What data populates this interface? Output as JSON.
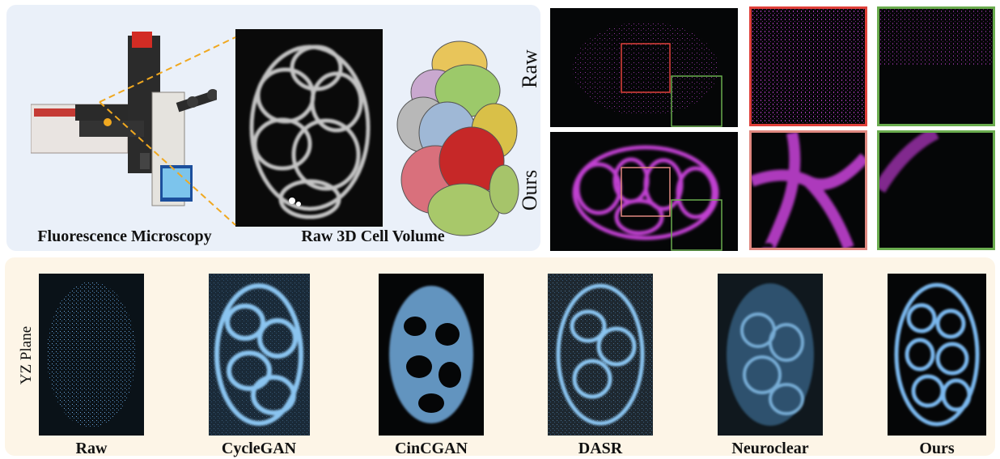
{
  "top_left": {
    "microscope_caption": "Fluorescence Microscopy",
    "volume_caption": "Raw 3D Cell Volume"
  },
  "top_right": {
    "row_labels": [
      "Raw",
      "Ours"
    ],
    "colors": {
      "red_box": "#e0403a",
      "green_box": "#6aac4e",
      "pink_box": "#e08880"
    }
  },
  "bottom": {
    "side_label": "YZ Plane",
    "methods": [
      "Raw",
      "CycleGAN",
      "CinCGAN",
      "DASR",
      "Neuroclear",
      "Ours"
    ]
  },
  "colors": {
    "panel_blue": "#eaf0f9",
    "panel_cream": "#fdf5e7",
    "magenta": "#c040d0",
    "cyan": "#7ab8ee",
    "guide_dashes": "#f0a820"
  }
}
